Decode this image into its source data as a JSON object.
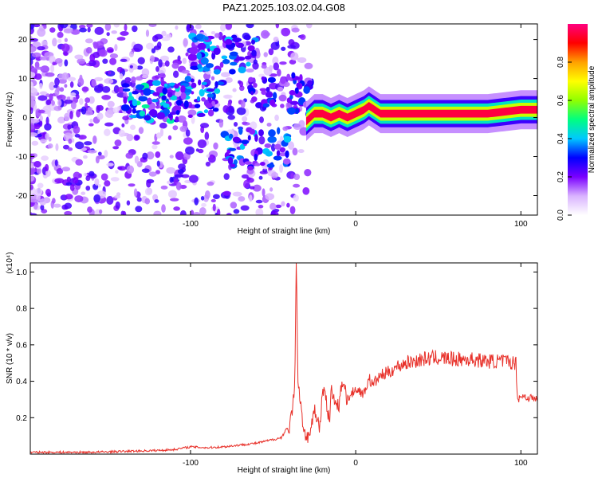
{
  "page": {
    "title": "PAZ1.2025.103.02.04.G08"
  },
  "chart_data": [
    {
      "type": "heatmap",
      "title": "PAZ1.2025.103.02.04.G08",
      "xlabel": "Height of straight line (km)",
      "ylabel": "Frequency (Hz)",
      "xlim": [
        -197,
        110
      ],
      "ylim": [
        -25,
        24
      ],
      "x_ticks": [
        -100,
        0,
        100
      ],
      "x_tick_labels": [
        "-100",
        "0",
        "100"
      ],
      "y_ticks": [
        -20,
        -10,
        0,
        10,
        20
      ],
      "y_tick_labels": [
        "-20",
        "-10",
        "0",
        "10",
        "20"
      ],
      "colorbar": {
        "label": "Normalized spectral amplitude",
        "range": [
          0,
          1
        ],
        "ticks": [
          0.0,
          0.2,
          0.4,
          0.6,
          0.8
        ],
        "tick_labels": [
          "0.0",
          "0.2",
          "0.4",
          "0.6",
          "0.8"
        ],
        "colormap": [
          "#ffffff",
          "#d9b3ff",
          "#7a00ff",
          "#0000ff",
          "#00c8ff",
          "#00ff80",
          "#90ff00",
          "#ffff00",
          "#ffa000",
          "#ff0000",
          "#ff0080"
        ]
      },
      "ridge": {
        "x": [
          -30,
          -25,
          -20,
          -15,
          -10,
          -5,
          0,
          5,
          8,
          15,
          30,
          50,
          80,
          100,
          110
        ],
        "y": [
          -1,
          1,
          1,
          0,
          1,
          0,
          1,
          2,
          3,
          1,
          1,
          1,
          1,
          2,
          2
        ],
        "peak_amplitude": 0.95
      },
      "clusters": [
        {
          "x": -120,
          "y": 4,
          "amplitude": 0.35
        },
        {
          "x": -100,
          "y": 5,
          "amplitude": 0.3
        },
        {
          "x": -80,
          "y": 16,
          "amplitude": 0.3
        },
        {
          "x": -60,
          "y": -8,
          "amplitude": 0.3
        },
        {
          "x": -45,
          "y": 6,
          "amplitude": 0.25
        }
      ]
    },
    {
      "type": "line",
      "title": "",
      "xlabel": "Height of straight line (km)",
      "ylabel": "SNR (10 * v/v)",
      "y_scale_note": "(x10⁴)",
      "xlim": [
        -197,
        110
      ],
      "ylim": [
        0,
        1.05
      ],
      "x_ticks": [
        -100,
        0,
        100
      ],
      "x_tick_labels": [
        "-100",
        "0",
        "100"
      ],
      "y_ticks": [
        0.2,
        0.4,
        0.6,
        0.8,
        1.0
      ],
      "y_tick_labels": [
        "0.2",
        "0.4",
        "0.6",
        "0.8",
        "1.0"
      ],
      "color": "#e8312a",
      "x": [
        -197,
        -180,
        -160,
        -140,
        -120,
        -110,
        -100,
        -90,
        -80,
        -70,
        -60,
        -50,
        -45,
        -42,
        -40,
        -38,
        -37,
        -36,
        -35,
        -34,
        -32,
        -30,
        -28,
        -25,
        -22,
        -20,
        -18,
        -16,
        -15,
        -12,
        -10,
        -8,
        -5,
        0,
        5,
        8,
        10,
        15,
        20,
        25,
        30,
        35,
        40,
        50,
        60,
        70,
        80,
        90,
        97,
        98,
        100,
        105,
        110
      ],
      "y": [
        0.01,
        0.01,
        0.01,
        0.015,
        0.02,
        0.025,
        0.04,
        0.035,
        0.04,
        0.05,
        0.06,
        0.08,
        0.09,
        0.14,
        0.12,
        0.25,
        0.35,
        1.05,
        0.4,
        0.3,
        0.15,
        0.05,
        0.1,
        0.22,
        0.12,
        0.35,
        0.28,
        0.15,
        0.32,
        0.28,
        0.25,
        0.38,
        0.3,
        0.36,
        0.33,
        0.42,
        0.38,
        0.43,
        0.45,
        0.48,
        0.5,
        0.51,
        0.52,
        0.53,
        0.52,
        0.52,
        0.51,
        0.51,
        0.5,
        0.3,
        0.32,
        0.31,
        0.3
      ]
    }
  ]
}
